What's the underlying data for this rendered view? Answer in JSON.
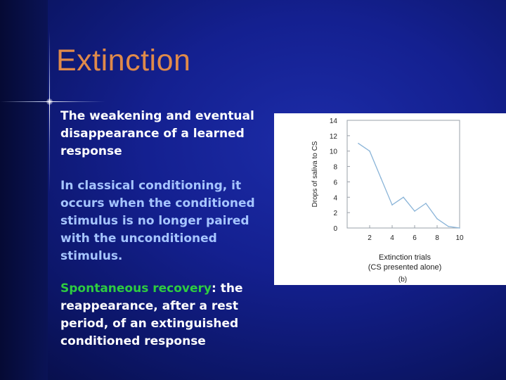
{
  "slide": {
    "title": "Extinction",
    "definition": "The weakening and eventual disappearance of a learned response",
    "classical": "In classical conditioning, it occurs when the conditioned stimulus is no longer paired with the unconditioned stimulus.",
    "spontaneous_term": "Spontaneous recovery",
    "spontaneous_sep": ":  ",
    "spontaneous_rest": "the reappearance, after a rest period, of an extinguished conditioned response"
  },
  "colors": {
    "title": "#e08a4a",
    "term": "#2ecc40",
    "secondary_text": "#a6c5ff",
    "line": "#8ab4d8"
  },
  "chart_data": {
    "type": "line",
    "ylabel": "Drops of saliva to CS",
    "xlabel": "Extinction trials",
    "xlabel2": "(CS presented alone)",
    "panel_label": "(b)",
    "x": [
      1,
      2,
      3,
      4,
      5,
      6,
      7,
      8,
      9,
      10
    ],
    "y": [
      11,
      10,
      6.5,
      3,
      4,
      2.2,
      3.2,
      1.2,
      0.2,
      0
    ],
    "xlim": [
      0,
      10
    ],
    "ylim": [
      0,
      14
    ],
    "xticks": [
      "2",
      "4",
      "6",
      "8",
      "10"
    ],
    "yticks": [
      "0",
      "2",
      "4",
      "6",
      "8",
      "10",
      "12",
      "14"
    ],
    "grid": false
  }
}
